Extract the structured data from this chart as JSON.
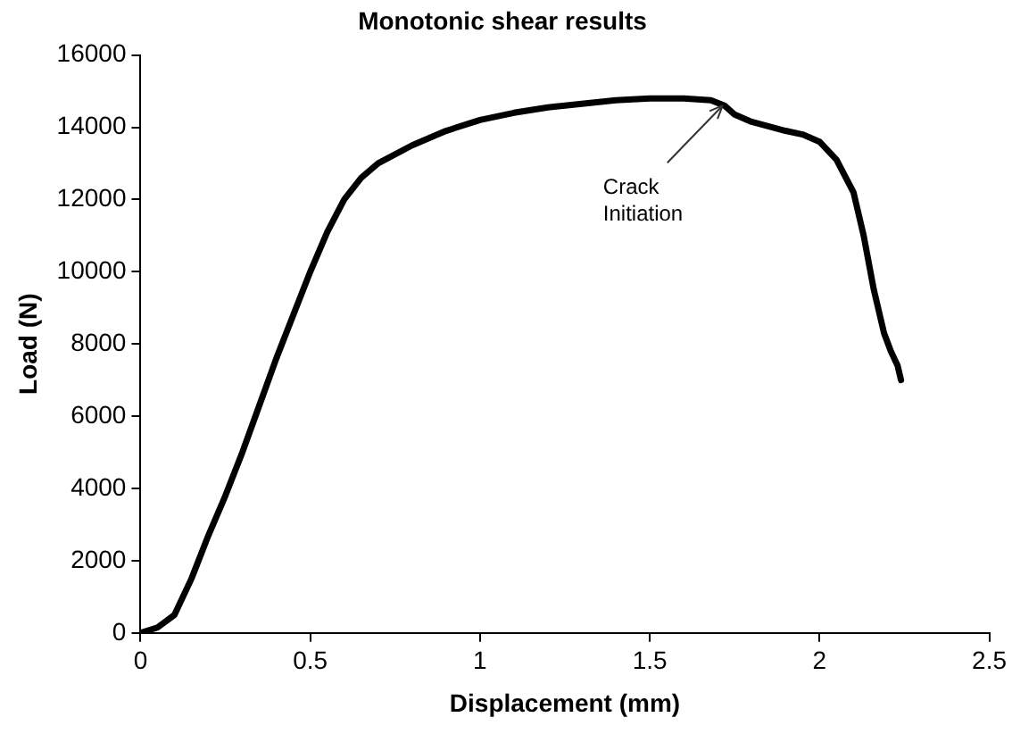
{
  "chart_data": {
    "type": "line",
    "title": "Monotonic shear results",
    "xlabel": "Displacement (mm)",
    "ylabel": "Load (N)",
    "x": [
      0,
      0.05,
      0.1,
      0.15,
      0.2,
      0.25,
      0.3,
      0.35,
      0.4,
      0.45,
      0.5,
      0.55,
      0.6,
      0.65,
      0.7,
      0.8,
      0.9,
      1.0,
      1.1,
      1.2,
      1.3,
      1.4,
      1.5,
      1.6,
      1.68,
      1.72,
      1.75,
      1.8,
      1.9,
      1.95,
      2.0,
      2.05,
      2.1,
      2.13,
      2.16,
      2.19,
      2.21,
      2.23,
      2.24
    ],
    "series": [
      {
        "color": "#000000",
        "values": [
          0,
          150,
          500,
          1500,
          2700,
          3800,
          5000,
          6300,
          7600,
          8800,
          10000,
          11100,
          12000,
          12600,
          13000,
          13500,
          13900,
          14200,
          14400,
          14550,
          14650,
          14750,
          14800,
          14800,
          14750,
          14600,
          14350,
          14150,
          13900,
          13800,
          13600,
          13100,
          12200,
          11000,
          9500,
          8300,
          7800,
          7400,
          7000
        ]
      }
    ],
    "xlim": [
      0,
      2.5
    ],
    "xticks": [
      0,
      0.5,
      1,
      1.5,
      2,
      2.5
    ],
    "ylim": [
      0,
      16000
    ],
    "yticks": [
      0,
      2000,
      4000,
      6000,
      8000,
      10000,
      12000,
      14000,
      16000
    ],
    "grid": false,
    "legend": false,
    "marker": "none",
    "line_style": "solid",
    "annotations": [
      {
        "text": "Crack Initiation",
        "x": 1.72,
        "y": 14700
      }
    ]
  }
}
